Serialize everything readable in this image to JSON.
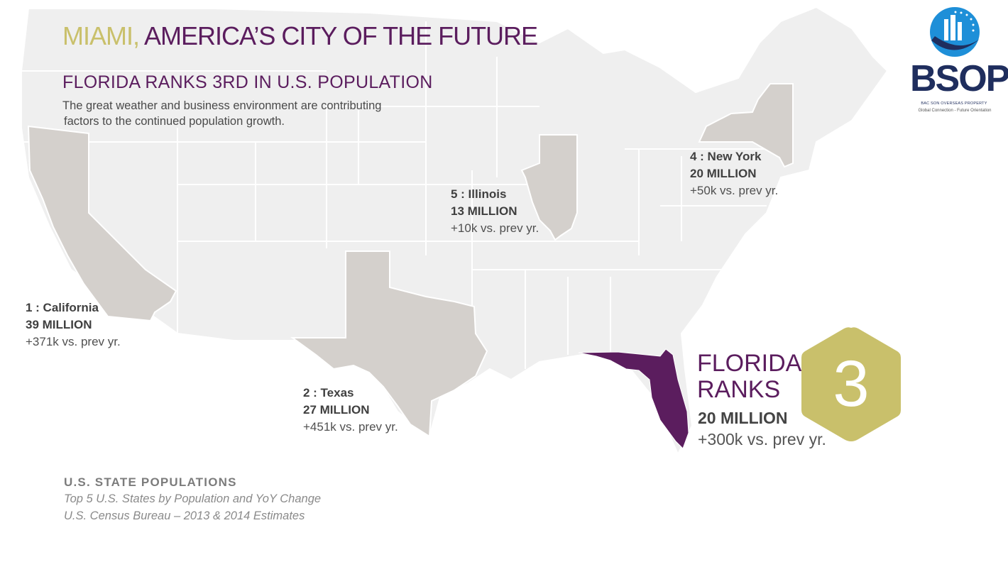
{
  "header": {
    "title_accent": "MIAMI,",
    "title_rest": " AMERICA’S CITY OF THE FUTURE",
    "subtitle": "FLORIDA RANKS 3RD IN U.S. POPULATION",
    "intro_line1": "The great weather and business environment are contributing",
    "intro_line2": "factors to the continued population growth."
  },
  "states": [
    {
      "rank_label": "1 : California",
      "population": "39 MILLION",
      "change": "+371k vs. prev yr."
    },
    {
      "rank_label": "2 : Texas",
      "population": "27 MILLION",
      "change": "+451k vs. prev yr."
    },
    {
      "rank_label": "4 : New York",
      "population": "20 MILLION",
      "change": "+50k vs. prev yr."
    },
    {
      "rank_label": "5 : Illinois",
      "population": "13 MILLION",
      "change": "+10k vs. prev yr."
    }
  ],
  "florida": {
    "title_line1": "FLORIDA",
    "title_line2": "RANKS",
    "rank": "3",
    "population": "20 MILLION",
    "change": "+300k vs. prev yr."
  },
  "source": {
    "title": "U.S. STATE POPULATIONS",
    "line1": "Top 5 U.S. States by Population and YoY Change",
    "line2": "U.S. Census Bureau – 2013 & 2014 Estimates"
  },
  "logo": {
    "name": "BSOP",
    "company": "BAC SON OVERSEAS PROPERTY",
    "tagline": "Global Connection - Future Orientation"
  },
  "colors": {
    "map_base": "#efefef",
    "map_border": "#ffffff",
    "highlight_state": "#d4d0cc",
    "florida": "#5b1d5e",
    "accent_gold": "#c9c06b",
    "logo_blue": "#1f2e5e"
  },
  "icons": {
    "logo_mark": "globe-buildings-icon",
    "rank_badge": "hexagon-icon"
  }
}
